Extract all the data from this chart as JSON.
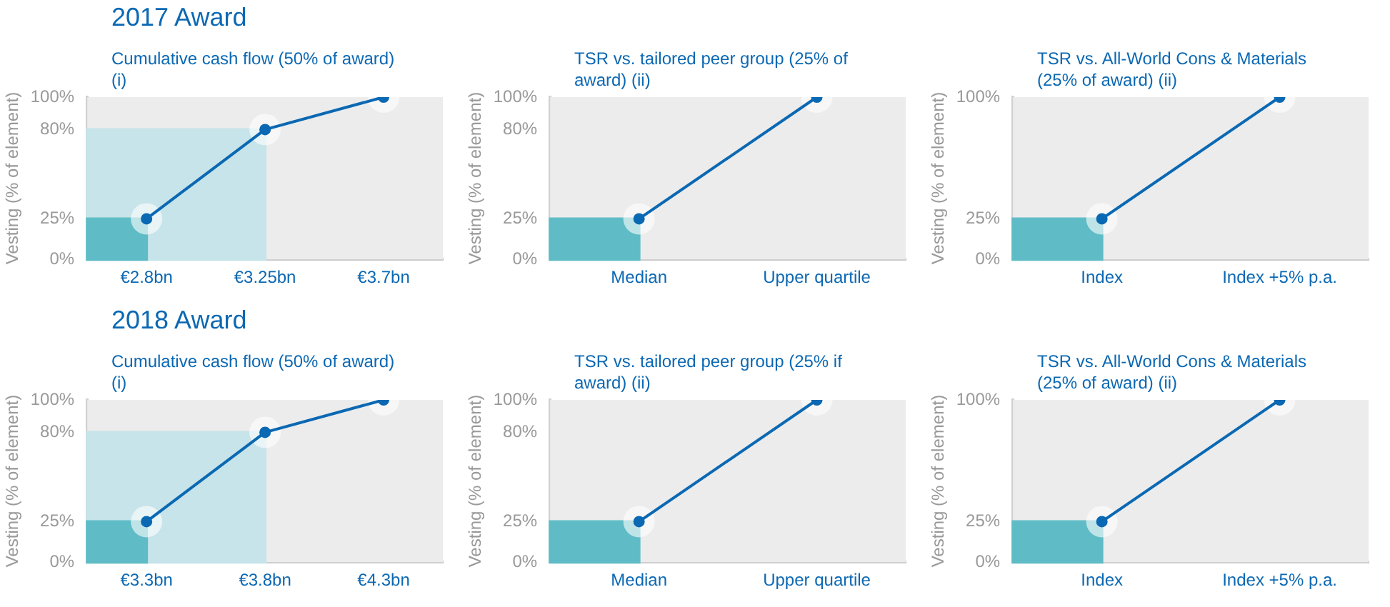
{
  "chart_data": [
    {
      "type": "line",
      "title": "2017 Award",
      "subtitle": "Cumulative cash flow (50% of award) (i)",
      "ylabel": "Vesting (% of element)",
      "categories": [
        "€2.8bn",
        "€3.25bn",
        "€3.7bn"
      ],
      "values": [
        25,
        80,
        100
      ],
      "color": "#0b68b3",
      "ylim": [
        0,
        100
      ],
      "yticks": [
        {
          "value": 0,
          "label": "0%"
        },
        {
          "value": 25,
          "label": "25%"
        },
        {
          "value": 80,
          "label": "80%"
        },
        {
          "value": 100,
          "label": "100%"
        }
      ],
      "marker": "circle",
      "bands": [
        {
          "axis": "y",
          "from": 0,
          "to": 80,
          "color": "#c6e4e9"
        },
        {
          "axis": "y",
          "from": 0,
          "to": 25,
          "color": "#5fbcc6"
        }
      ]
    },
    {
      "type": "line",
      "subtitle": "TSR vs. tailored peer group (25% of award) (ii)",
      "ylabel": "Vesting (% of element)",
      "categories": [
        "Median",
        "Upper quartile"
      ],
      "values": [
        25,
        100
      ],
      "color": "#0b68b3",
      "ylim": [
        0,
        100
      ],
      "yticks": [
        {
          "value": 0,
          "label": "0%"
        },
        {
          "value": 25,
          "label": "25%"
        },
        {
          "value": 80,
          "label": "80%"
        },
        {
          "value": 100,
          "label": "100%"
        }
      ],
      "marker": "circle",
      "bands": [
        {
          "axis": "y",
          "from": 0,
          "to": 25,
          "color": "#5fbcc6"
        }
      ]
    },
    {
      "type": "line",
      "subtitle": "TSR vs. All-World Cons & Materials (25% of award) (ii)",
      "ylabel": "Vesting (% of element)",
      "categories": [
        "Index",
        "Index +5% p.a."
      ],
      "values": [
        25,
        100
      ],
      "color": "#0b68b3",
      "ylim": [
        0,
        100
      ],
      "yticks": [
        {
          "value": 0,
          "label": "0%"
        },
        {
          "value": 25,
          "label": "25%"
        },
        {
          "value": 100,
          "label": "100%"
        }
      ],
      "marker": "circle",
      "bands": [
        {
          "axis": "y",
          "from": 0,
          "to": 25,
          "color": "#5fbcc6"
        }
      ]
    },
    {
      "type": "line",
      "title": "2018 Award",
      "subtitle": "Cumulative cash flow (50% of award) (i)",
      "ylabel": "Vesting (% of element)",
      "categories": [
        "€3.3bn",
        "€3.8bn",
        "€4.3bn"
      ],
      "values": [
        25,
        80,
        100
      ],
      "color": "#0b68b3",
      "ylim": [
        0,
        100
      ],
      "yticks": [
        {
          "value": 0,
          "label": "0%"
        },
        {
          "value": 25,
          "label": "25%"
        },
        {
          "value": 80,
          "label": "80%"
        },
        {
          "value": 100,
          "label": "100%"
        }
      ],
      "marker": "circle",
      "bands": [
        {
          "axis": "y",
          "from": 0,
          "to": 80,
          "color": "#c6e4e9"
        },
        {
          "axis": "y",
          "from": 0,
          "to": 25,
          "color": "#5fbcc6"
        }
      ]
    },
    {
      "type": "line",
      "subtitle": "TSR vs. tailored peer group (25% if award) (ii)",
      "ylabel": "Vesting (% of element)",
      "categories": [
        "Median",
        "Upper quartile"
      ],
      "values": [
        25,
        100
      ],
      "color": "#0b68b3",
      "ylim": [
        0,
        100
      ],
      "yticks": [
        {
          "value": 0,
          "label": "0%"
        },
        {
          "value": 25,
          "label": "25%"
        },
        {
          "value": 80,
          "label": "80%"
        },
        {
          "value": 100,
          "label": "100%"
        }
      ],
      "marker": "circle",
      "bands": [
        {
          "axis": "y",
          "from": 0,
          "to": 25,
          "color": "#5fbcc6"
        }
      ]
    },
    {
      "type": "line",
      "subtitle": "TSR vs. All-World Cons & Materials (25% of award) (ii)",
      "ylabel": "Vesting (% of element)",
      "categories": [
        "Index",
        "Index +5% p.a."
      ],
      "values": [
        25,
        100
      ],
      "color": "#0b68b3",
      "ylim": [
        0,
        100
      ],
      "yticks": [
        {
          "value": 0,
          "label": "0%"
        },
        {
          "value": 25,
          "label": "25%"
        },
        {
          "value": 100,
          "label": "100%"
        }
      ],
      "marker": "circle",
      "bands": [
        {
          "axis": "y",
          "from": 0,
          "to": 25,
          "color": "#5fbcc6"
        }
      ]
    }
  ]
}
